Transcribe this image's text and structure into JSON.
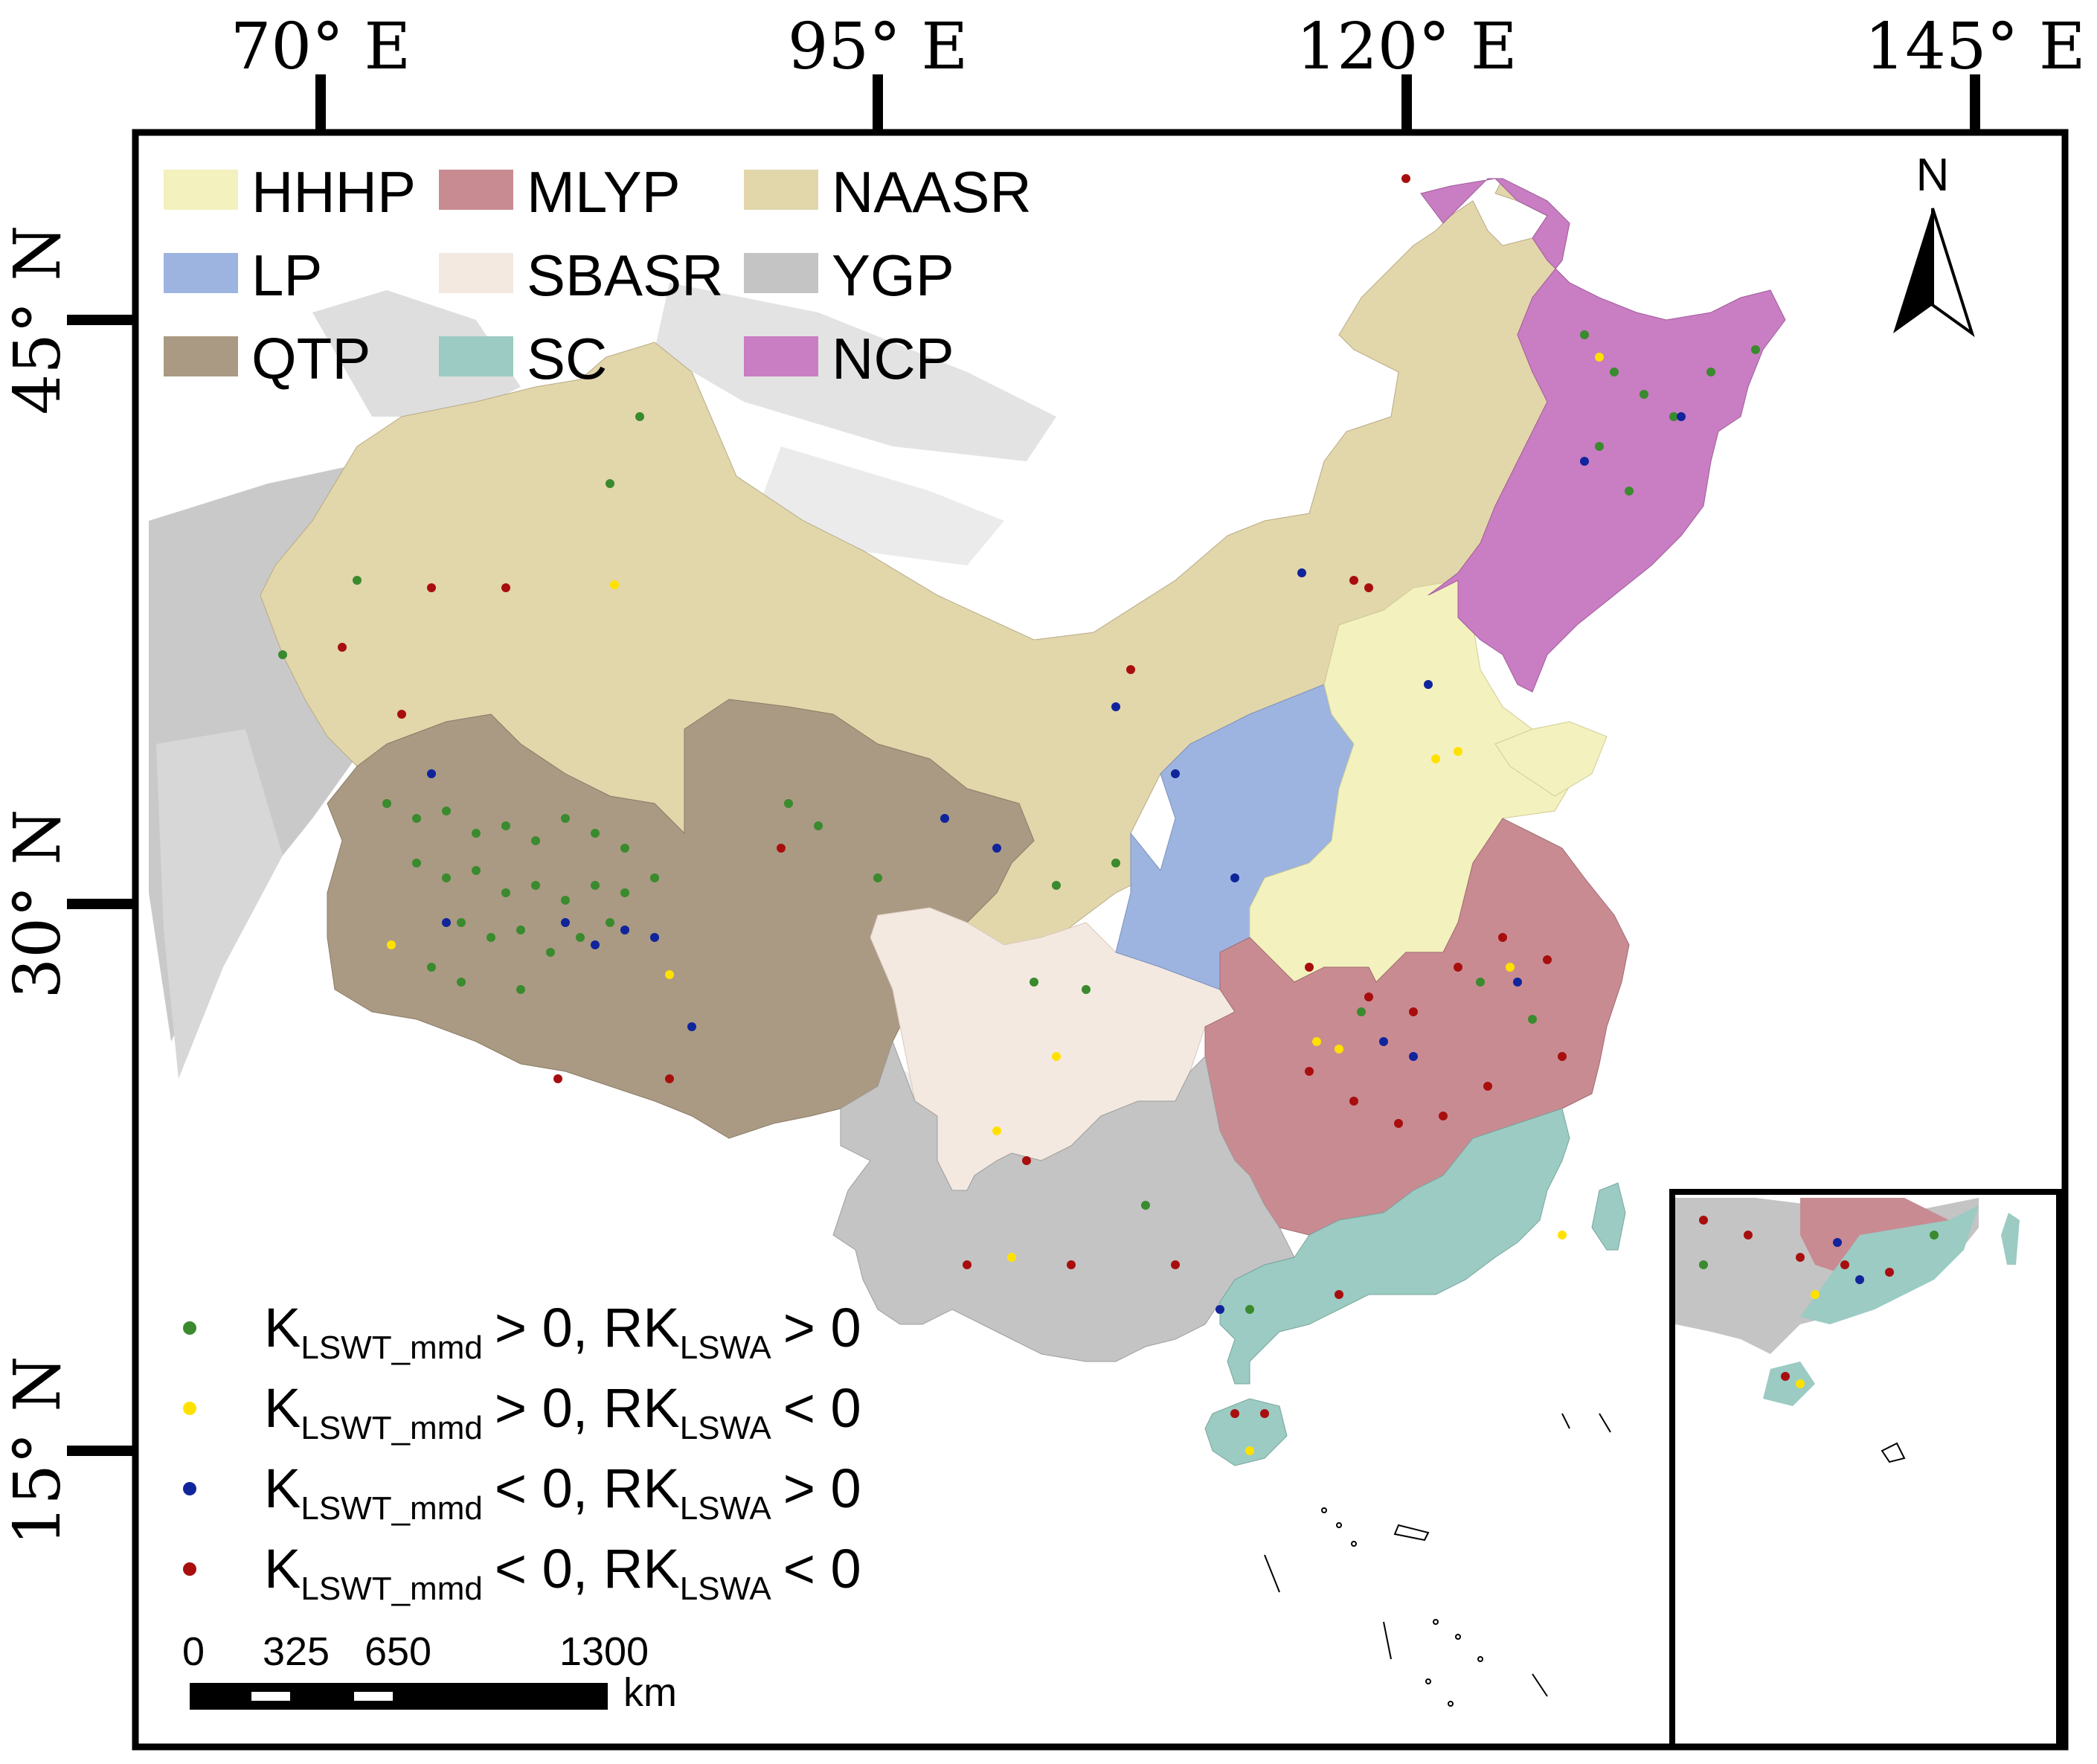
{
  "axes": {
    "longitude_labels": [
      "70° E",
      "95° E",
      "120° E",
      "145° E"
    ],
    "latitude_labels": [
      "45° N",
      "30° N",
      "15° N"
    ]
  },
  "legend_regions": [
    {
      "code": "HHHP",
      "color": "#f3f1bd"
    },
    {
      "code": "MLYP",
      "color": "#c98b92"
    },
    {
      "code": "NAASR",
      "color": "#e2d6ab"
    },
    {
      "code": "LP",
      "color": "#9db4e0"
    },
    {
      "code": "SBASR",
      "color": "#f3e9e1"
    },
    {
      "code": "YGP",
      "color": "#c4c4c4"
    },
    {
      "code": "QTP",
      "color": "#aa9a83"
    },
    {
      "code": "SC",
      "color": "#9bcbc2"
    },
    {
      "code": "NCP",
      "color": "#c97dc2"
    }
  ],
  "point_legend": [
    {
      "color": "#3a8a2e",
      "k_sub": "LSWT_mmd",
      "k_op": ">",
      "rk_sub": "LSWA",
      "rk_op": ">"
    },
    {
      "color": "#ffe100",
      "k_sub": "LSWT_mmd",
      "k_op": ">",
      "rk_sub": "LSWA",
      "rk_op": "<"
    },
    {
      "color": "#10249c",
      "k_sub": "LSWT_mmd",
      "k_op": "<",
      "rk_sub": "LSWA",
      "rk_op": ">"
    },
    {
      "color": "#a80e0e",
      "k_sub": "LSWT_mmd",
      "k_op": "<",
      "rk_sub": "LSWA",
      "rk_op": "<"
    }
  ],
  "point_legend_text": {
    "k": "K",
    "rk": "RK",
    "zero_sep": " 0, ",
    "zero_end": " 0"
  },
  "north_arrow": {
    "label": "N"
  },
  "scale_bar": {
    "ticks": [
      "0",
      "325",
      "650",
      "1300"
    ],
    "unit": "km"
  }
}
